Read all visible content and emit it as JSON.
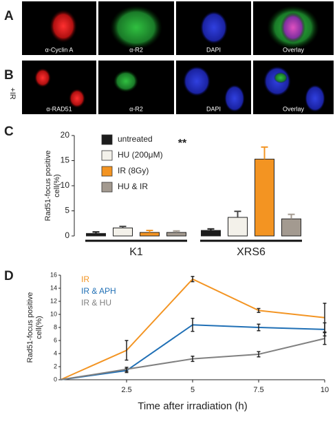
{
  "image_panels": [
    {
      "letter": "A",
      "labels": [
        "α-Cyclin A",
        "α-R2",
        "DAPI",
        "Overlay"
      ]
    },
    {
      "letter": "B",
      "side_label": "+IR",
      "labels": [
        "α-RAD51",
        "α-R2",
        "DAPI",
        "Overlay"
      ]
    }
  ],
  "chart_data": [
    {
      "letter": "C",
      "type": "bar",
      "ylabel": [
        "Rad51-focus positive",
        "cell(%)"
      ],
      "categories": [
        "K1",
        "XRS6"
      ],
      "series": [
        {
          "name": "untreated",
          "color": "#1c1c1c",
          "values": [
            0.5,
            1.1
          ],
          "errors": [
            0.3,
            0.3
          ]
        },
        {
          "name": "HU (200μM)",
          "color": "#f3f1ea",
          "values": [
            1.6,
            3.7
          ],
          "errors": [
            0.3,
            1.2
          ]
        },
        {
          "name": "IR (8Gy)",
          "color": "#f39422",
          "values": [
            0.7,
            15.3
          ],
          "errors": [
            0.4,
            2.4
          ]
        },
        {
          "name": "HU & IR",
          "color": "#a39a90",
          "values": [
            0.7,
            3.4
          ],
          "errors": [
            0.3,
            0.9
          ]
        }
      ],
      "annotation": "**",
      "ylim": [
        0,
        20
      ],
      "yticks": [
        0,
        5,
        10,
        15,
        20
      ]
    },
    {
      "letter": "D",
      "type": "line",
      "ylabel": [
        "Rad51-focus positive",
        "cell(%)"
      ],
      "xlabel": "Time after irradiation (h)",
      "x": [
        0,
        2.5,
        5,
        7.5,
        10
      ],
      "series": [
        {
          "name": "IR",
          "color": "#f39422",
          "values": [
            0,
            4.5,
            15.4,
            10.6,
            9.5
          ],
          "errors": [
            null,
            1.5,
            0.4,
            0.3,
            2.2
          ]
        },
        {
          "name": "IR & APH",
          "color": "#1f6fb5",
          "values": [
            0,
            1.4,
            8.4,
            8.0,
            7.7
          ],
          "errors": [
            null,
            0.3,
            1.0,
            0.5,
            1.0
          ]
        },
        {
          "name": "IR & HU",
          "color": "#808080",
          "values": [
            0,
            1.6,
            3.2,
            3.9,
            6.3
          ],
          "errors": [
            null,
            0.3,
            0.4,
            0.4,
            0.9
          ]
        }
      ],
      "xlim": [
        0,
        10
      ],
      "xticks": [
        2.5,
        5,
        7.5,
        10
      ],
      "ylim": [
        0,
        16
      ],
      "yticks": [
        0,
        2,
        4,
        6,
        8,
        10,
        12,
        14,
        16
      ]
    }
  ]
}
